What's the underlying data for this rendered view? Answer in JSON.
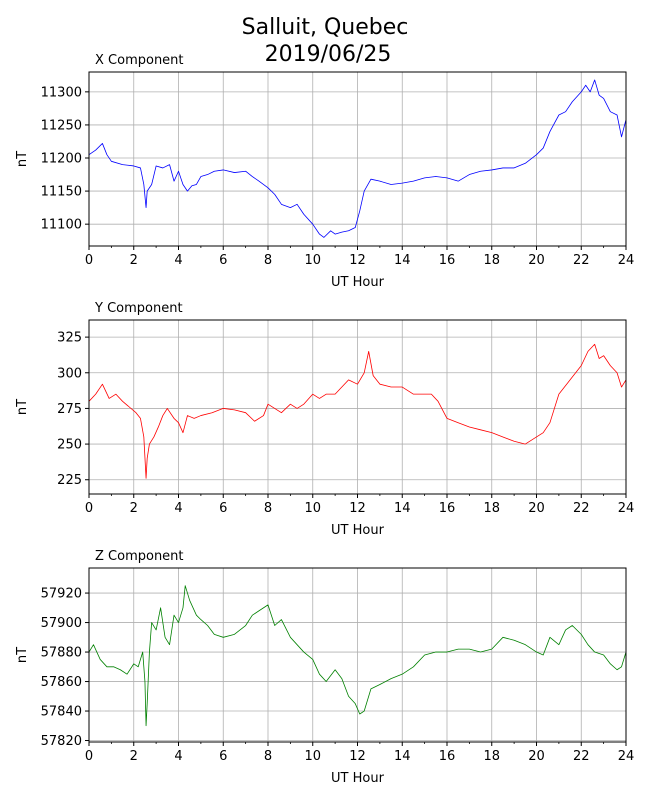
{
  "title_line1": "Salluit, Quebec",
  "title_line2": "2019/06/25",
  "chart_data": [
    {
      "type": "line",
      "title": "X Component",
      "xlabel": "UT Hour",
      "ylabel": "nT",
      "color": "#0000ff",
      "xlim": [
        0,
        24
      ],
      "ylim": [
        11067,
        11330
      ],
      "xticks": [
        0,
        2,
        4,
        6,
        8,
        10,
        12,
        14,
        16,
        18,
        20,
        22,
        24
      ],
      "yticks": [
        11100,
        11150,
        11200,
        11250,
        11300
      ],
      "grid": true,
      "series": [
        {
          "x": [
            0,
            0.3,
            0.6,
            0.8,
            1.0,
            1.5,
            2.0,
            2.3,
            2.45,
            2.55,
            2.6,
            2.8,
            3.0,
            3.3,
            3.6,
            3.8,
            4.0,
            4.2,
            4.4,
            4.6,
            4.8,
            5.0,
            5.3,
            5.6,
            6.0,
            6.5,
            7.0,
            7.3,
            7.6,
            8.0,
            8.3,
            8.6,
            9.0,
            9.3,
            9.6,
            10.0,
            10.3,
            10.5,
            10.8,
            11.0,
            11.3,
            11.6,
            11.9,
            12.1,
            12.3,
            12.6,
            13.0,
            13.5,
            14.0,
            14.5,
            15.0,
            15.5,
            16.0,
            16.5,
            17.0,
            17.5,
            18.0,
            18.5,
            19.0,
            19.5,
            20.0,
            20.3,
            20.6,
            21.0,
            21.3,
            21.6,
            22.0,
            22.2,
            22.4,
            22.6,
            22.8,
            23.0,
            23.3,
            23.6,
            23.8,
            24.0
          ],
          "y": [
            11205,
            11212,
            11222,
            11205,
            11195,
            11190,
            11188,
            11185,
            11160,
            11125,
            11150,
            11160,
            11188,
            11185,
            11190,
            11165,
            11180,
            11160,
            11150,
            11158,
            11160,
            11172,
            11175,
            11180,
            11182,
            11178,
            11180,
            11172,
            11165,
            11155,
            11145,
            11130,
            11125,
            11130,
            11115,
            11100,
            11085,
            11080,
            11090,
            11085,
            11088,
            11090,
            11095,
            11120,
            11150,
            11168,
            11165,
            11160,
            11162,
            11165,
            11170,
            11172,
            11170,
            11165,
            11175,
            11180,
            11182,
            11185,
            11185,
            11192,
            11205,
            11215,
            11240,
            11265,
            11270,
            11285,
            11300,
            11310,
            11300,
            11318,
            11295,
            11290,
            11270,
            11265,
            11232,
            11258
          ]
        }
      ]
    },
    {
      "type": "line",
      "title": "Y Component",
      "xlabel": "UT Hour",
      "ylabel": "nT",
      "color": "#ff0000",
      "xlim": [
        0,
        24
      ],
      "ylim": [
        215,
        337
      ],
      "xticks": [
        0,
        2,
        4,
        6,
        8,
        10,
        12,
        14,
        16,
        18,
        20,
        22,
        24
      ],
      "yticks": [
        225,
        250,
        275,
        300,
        325
      ],
      "grid": true,
      "series": [
        {
          "x": [
            0,
            0.3,
            0.6,
            0.9,
            1.2,
            1.5,
            1.8,
            2.1,
            2.3,
            2.45,
            2.55,
            2.6,
            2.7,
            2.9,
            3.1,
            3.3,
            3.5,
            3.8,
            4.0,
            4.2,
            4.4,
            4.7,
            5.0,
            5.5,
            6.0,
            6.5,
            7.0,
            7.4,
            7.8,
            8.0,
            8.3,
            8.6,
            9.0,
            9.3,
            9.6,
            10.0,
            10.3,
            10.6,
            11.0,
            11.3,
            11.6,
            12.0,
            12.3,
            12.5,
            12.7,
            13.0,
            13.5,
            14.0,
            14.5,
            15.0,
            15.3,
            15.6,
            16.0,
            16.5,
            17.0,
            17.5,
            18.0,
            18.5,
            19.0,
            19.5,
            20.0,
            20.3,
            20.6,
            21.0,
            21.5,
            22.0,
            22.3,
            22.6,
            22.8,
            23.0,
            23.3,
            23.6,
            23.8,
            24.0
          ],
          "y": [
            280,
            285,
            292,
            282,
            285,
            280,
            276,
            272,
            268,
            255,
            226,
            240,
            250,
            255,
            262,
            270,
            275,
            268,
            265,
            258,
            270,
            268,
            270,
            272,
            275,
            274,
            272,
            266,
            270,
            278,
            275,
            272,
            278,
            275,
            278,
            285,
            282,
            285,
            285,
            290,
            295,
            292,
            300,
            315,
            298,
            292,
            290,
            290,
            285,
            285,
            285,
            280,
            268,
            265,
            262,
            260,
            258,
            255,
            252,
            250,
            255,
            258,
            265,
            285,
            295,
            305,
            315,
            320,
            310,
            312,
            305,
            300,
            290,
            295
          ]
        }
      ]
    },
    {
      "type": "line",
      "title": "Z Component",
      "xlabel": "UT Hour",
      "ylabel": "nT",
      "color": "#008000",
      "xlim": [
        0,
        24
      ],
      "ylim": [
        57819,
        57937
      ],
      "xticks": [
        0,
        2,
        4,
        6,
        8,
        10,
        12,
        14,
        16,
        18,
        20,
        22,
        24
      ],
      "yticks": [
        57820,
        57840,
        57860,
        57880,
        57900,
        57920
      ],
      "grid": true,
      "series": [
        {
          "x": [
            0,
            0.2,
            0.5,
            0.8,
            1.1,
            1.4,
            1.7,
            2.0,
            2.2,
            2.4,
            2.5,
            2.55,
            2.6,
            2.7,
            2.8,
            3.0,
            3.2,
            3.4,
            3.6,
            3.8,
            4.0,
            4.2,
            4.3,
            4.5,
            4.8,
            5.0,
            5.3,
            5.6,
            6.0,
            6.5,
            7.0,
            7.3,
            7.6,
            8.0,
            8.3,
            8.6,
            9.0,
            9.3,
            9.6,
            10.0,
            10.3,
            10.6,
            11.0,
            11.3,
            11.6,
            11.9,
            12.1,
            12.3,
            12.6,
            13.0,
            13.5,
            14.0,
            14.5,
            15.0,
            15.5,
            16.0,
            16.5,
            17.0,
            17.5,
            18.0,
            18.5,
            19.0,
            19.5,
            20.0,
            20.3,
            20.6,
            21.0,
            21.3,
            21.6,
            22.0,
            22.3,
            22.6,
            23.0,
            23.3,
            23.6,
            23.8,
            24.0
          ],
          "y": [
            57880,
            57885,
            57875,
            57870,
            57870,
            57868,
            57865,
            57872,
            57870,
            57880,
            57860,
            57830,
            57845,
            57880,
            57900,
            57895,
            57910,
            57890,
            57885,
            57905,
            57900,
            57910,
            57925,
            57915,
            57905,
            57902,
            57898,
            57892,
            57890,
            57892,
            57898,
            57905,
            57908,
            57912,
            57898,
            57902,
            57890,
            57885,
            57880,
            57875,
            57865,
            57860,
            57868,
            57862,
            57850,
            57845,
            57838,
            57840,
            57855,
            57858,
            57862,
            57865,
            57870,
            57878,
            57880,
            57880,
            57882,
            57882,
            57880,
            57882,
            57890,
            57888,
            57885,
            57880,
            57878,
            57890,
            57885,
            57895,
            57898,
            57892,
            57885,
            57880,
            57878,
            57872,
            57868,
            57870,
            57880
          ]
        }
      ]
    }
  ]
}
